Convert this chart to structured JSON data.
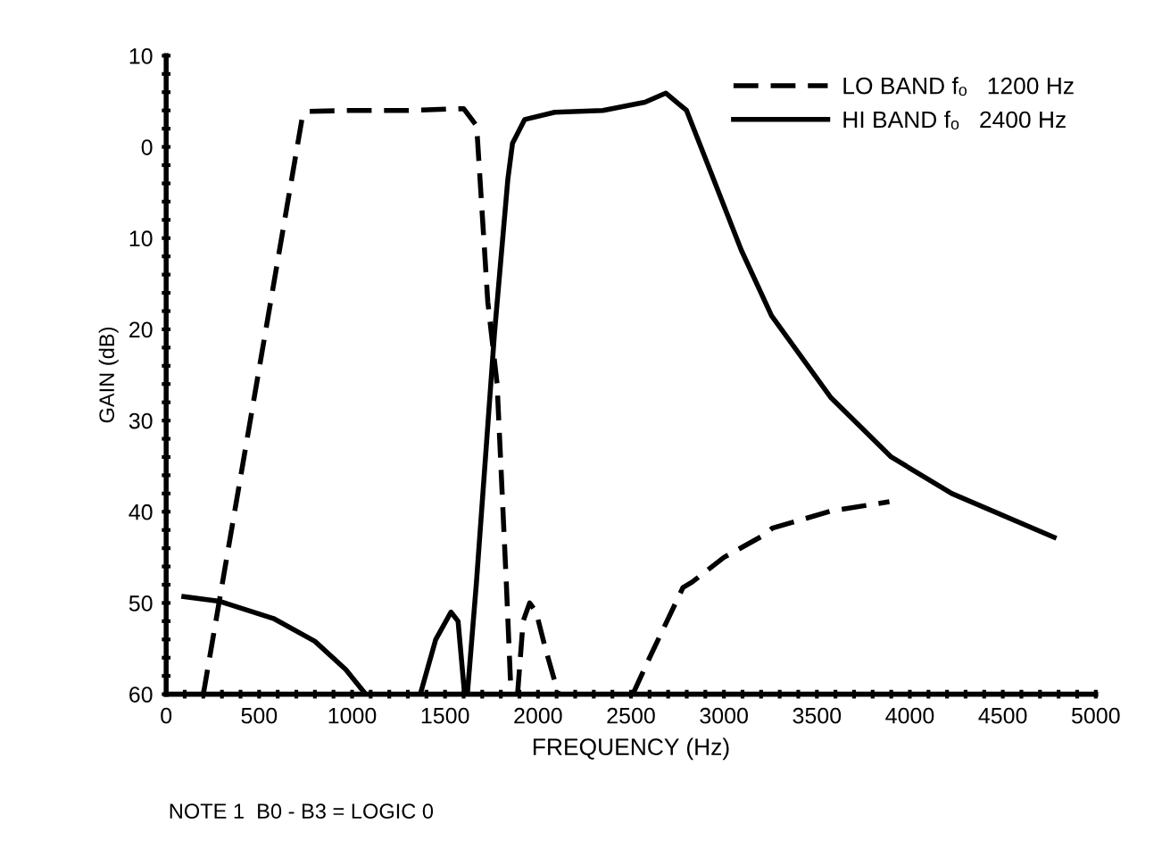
{
  "chart_data": {
    "type": "line",
    "xlabel": "FREQUENCY (Hz)",
    "ylabel": "GAIN (dB)",
    "legend": "top right",
    "grid": false,
    "marker": "none",
    "annotations": [
      "NOTE 1  B0 - B3 = LOGIC 0"
    ],
    "xlim": [
      0,
      5000
    ],
    "ylim": [
      -60,
      10
    ],
    "xticks": [
      0,
      500,
      1000,
      1500,
      2000,
      2500,
      3000,
      3500,
      4000,
      4500,
      5000,
      {
        "value": 100,
        "label": null
      },
      {
        "value": 200,
        "label": null
      },
      {
        "value": 300,
        "label": null
      },
      {
        "value": 400,
        "label": null
      },
      {
        "value": 600,
        "label": null
      },
      {
        "value": 700,
        "label": null
      },
      {
        "value": 800,
        "label": null
      },
      {
        "value": 900,
        "label": null
      },
      {
        "value": 1100,
        "label": null
      },
      {
        "value": 1200,
        "label": null
      },
      {
        "value": 1300,
        "label": null
      },
      {
        "value": 1400,
        "label": null
      },
      {
        "value": 1600,
        "label": null
      },
      {
        "value": 1700,
        "label": null
      },
      {
        "value": 1800,
        "label": null
      },
      {
        "value": 1900,
        "label": null
      },
      {
        "value": 2100,
        "label": null
      },
      {
        "value": 2200,
        "label": null
      },
      {
        "value": 2300,
        "label": null
      },
      {
        "value": 2400,
        "label": null
      },
      {
        "value": 2600,
        "label": null
      },
      {
        "value": 2700,
        "label": null
      },
      {
        "value": 2800,
        "label": null
      },
      {
        "value": 2900,
        "label": null
      },
      {
        "value": 3100,
        "label": null
      },
      {
        "value": 3200,
        "label": null
      },
      {
        "value": 3300,
        "label": null
      },
      {
        "value": 3400,
        "label": null
      },
      {
        "value": 3600,
        "label": null
      },
      {
        "value": 3700,
        "label": null
      },
      {
        "value": 3800,
        "label": null
      },
      {
        "value": 3900,
        "label": null
      },
      {
        "value": 4100,
        "label": null
      },
      {
        "value": 4200,
        "label": null
      },
      {
        "value": 4300,
        "label": null
      },
      {
        "value": 4400,
        "label": null
      },
      {
        "value": 4600,
        "label": null
      },
      {
        "value": 4700,
        "label": null
      },
      {
        "value": 4800,
        "label": null
      },
      {
        "value": 4900,
        "label": null
      }
    ],
    "yticks": [
      {
        "value": 10,
        "label": "10"
      },
      0,
      {
        "value": -10,
        "label": "10"
      },
      {
        "value": -20,
        "label": "20"
      },
      {
        "value": -30,
        "label": "30"
      },
      {
        "value": -40,
        "label": "40"
      },
      {
        "value": -50,
        "label": "50"
      },
      {
        "value": -60,
        "label": "60"
      },
      {
        "value": 8,
        "label": null
      },
      {
        "value": 6,
        "label": null
      },
      {
        "value": 4,
        "label": null
      },
      {
        "value": 2,
        "label": null
      },
      {
        "value": -2,
        "label": null
      },
      {
        "value": -4,
        "label": null
      },
      {
        "value": -6,
        "label": null
      },
      {
        "value": -8,
        "label": null
      },
      {
        "value": -12,
        "label": null
      },
      {
        "value": -14,
        "label": null
      },
      {
        "value": -16,
        "label": null
      },
      {
        "value": -18,
        "label": null
      },
      {
        "value": -22,
        "label": null
      },
      {
        "value": -24,
        "label": null
      },
      {
        "value": -26,
        "label": null
      },
      {
        "value": -28,
        "label": null
      },
      {
        "value": -32,
        "label": null
      },
      {
        "value": -34,
        "label": null
      },
      {
        "value": -36,
        "label": null
      },
      {
        "value": -38,
        "label": null
      },
      {
        "value": -42,
        "label": null
      },
      {
        "value": -44,
        "label": null
      },
      {
        "value": -46,
        "label": null
      },
      {
        "value": -48,
        "label": null
      },
      {
        "value": -52,
        "label": null
      },
      {
        "value": -54,
        "label": null
      },
      {
        "value": -56,
        "label": null
      },
      {
        "value": -58,
        "label": null
      }
    ],
    "series": [
      {
        "name": "LO BAND fₒ   1200 Hz",
        "color": "#000000",
        "line_style": "dashed",
        "x": [
          200,
          730,
          760,
          1000,
          1300,
          1600,
          1670,
          1730,
          1780,
          1830,
          1855,
          1870,
          1890,
          1920,
          1955,
          1990,
          2040,
          2110,
          2300,
          2510,
          2600,
          2780,
          2830,
          3000,
          3220,
          3260,
          3580,
          3890
        ],
        "values": [
          -60,
          3,
          3.9,
          4,
          4,
          4.2,
          2.3,
          -17,
          -26,
          -48,
          -60,
          null,
          -60,
          -52,
          -50,
          -51,
          -55,
          -60,
          null,
          -60,
          -56,
          -48.3,
          -47.7,
          -45,
          -42.5,
          -41.8,
          -39.9,
          -38.9
        ]
      },
      {
        "name": "HI BAND fₒ   2400 Hz",
        "color": "#000000",
        "line_style": "solid",
        "x": [
          95,
          285,
          577,
          800,
          966,
          1073,
          1200,
          1367,
          1450,
          1532,
          1570,
          1605,
          1620,
          1669,
          1766,
          1838,
          1863,
          1928,
          2090,
          2349,
          2575,
          2688,
          2799,
          2932,
          3093,
          3256,
          3576,
          3900,
          4226,
          4776
        ],
        "values": [
          -49.3,
          -49.8,
          -51.7,
          -54.2,
          -57.3,
          -60,
          null,
          -60,
          -54,
          -51,
          -52,
          -60,
          -60,
          -47.7,
          -20.4,
          -3.5,
          0.4,
          3,
          3.8,
          4,
          4.9,
          5.9,
          4,
          -2.9,
          -11.3,
          -18.5,
          -27.5,
          -34,
          -38,
          -42.8
        ]
      }
    ]
  }
}
